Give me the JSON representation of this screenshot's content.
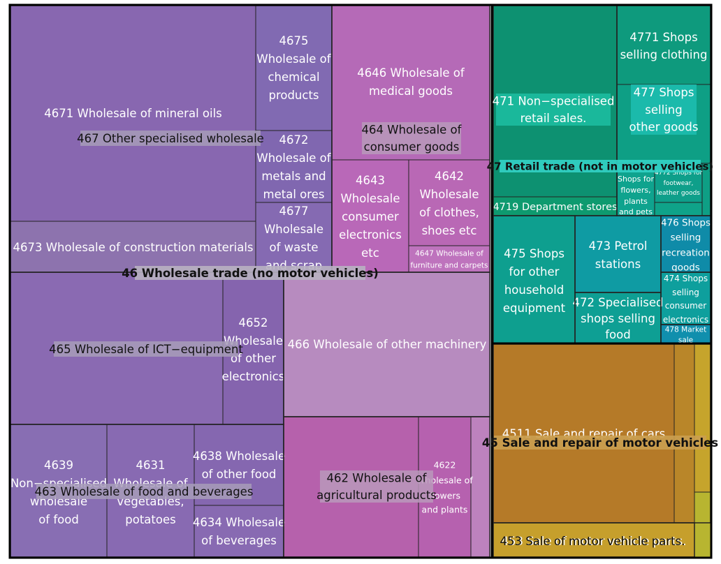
{
  "chart_data": {
    "type": "treemap",
    "colors": {
      "46": "#8a67b0",
      "47": "#0e9a78",
      "45": "#b57a28"
    },
    "groups": [
      {
        "id": "46",
        "name": "46 Wholesale trade (no motor vehicles)",
        "subgroups": [
          {
            "id": "467",
            "name": "467 Other specialised wholesale",
            "leaves": [
              {
                "id": "4671",
                "name": "4671 Wholesale of mineral oils"
              },
              {
                "id": "4673",
                "name": "4673 Wholesale of construction materials"
              },
              {
                "id": "4675",
                "name": "4675 Wholesale of chemical products"
              },
              {
                "id": "4672",
                "name": "4672 Wholesale of metals and metal ores"
              },
              {
                "id": "4677",
                "name": "4677 Wholesale of waste and scrap"
              }
            ]
          },
          {
            "id": "464",
            "name": "464 Wholesale of consumer goods",
            "leaves": [
              {
                "id": "4646",
                "name": "4646 Wholesale of medical goods"
              },
              {
                "id": "4643",
                "name": "4643 Wholesale consumer electronics etc"
              },
              {
                "id": "4642",
                "name": "4642 Wholesale of clothes, shoes etc"
              },
              {
                "id": "4647",
                "name": "4647 Wholesale of furniture and carpets"
              }
            ]
          },
          {
            "id": "465",
            "name": "465 Wholesale of ICT−equipment",
            "leaves": [
              {
                "id": "4651",
                "name": ""
              },
              {
                "id": "4652",
                "name": "4652 Wholesale of other electronics"
              }
            ]
          },
          {
            "id": "466",
            "name": "466 Wholesale of other machinery",
            "leaves": [
              {
                "id": "4669",
                "name": ""
              },
              {
                "id": "4660a",
                "name": ""
              }
            ]
          },
          {
            "id": "463",
            "name": "463 Wholesale of food and beverages",
            "leaves": [
              {
                "id": "4639",
                "name": "4639 Non−specialised wholesale of food"
              },
              {
                "id": "4631",
                "name": "4631 Wholesale of vegetables, potatoes"
              },
              {
                "id": "4638",
                "name": "4638 Wholesale of other food"
              },
              {
                "id": "4634",
                "name": "4634 Wholesale of beverages"
              }
            ]
          },
          {
            "id": "462",
            "name": "462 Wholesale of agricultural products",
            "leaves": [
              {
                "id": "4621",
                "name": ""
              },
              {
                "id": "4622",
                "name": "4622 Wholesale of flowers and plants"
              },
              {
                "id": "4623",
                "name": ""
              }
            ]
          }
        ]
      },
      {
        "id": "47",
        "name": "47 Retail trade (not in motor vehicles)",
        "subgroups": [
          {
            "id": "471",
            "name": "471 Non−specialised retail sales.",
            "leaves": [
              {
                "id": "4711",
                "name": ""
              },
              {
                "id": "4719",
                "name": "4719 Department stores"
              }
            ]
          },
          {
            "id": "477",
            "name": "477 Shops selling other goods",
            "leaves": [
              {
                "id": "4771",
                "name": "4771 Shops selling clothing"
              },
              {
                "id": "4776",
                "name": "Shops for flowers, plants and pets"
              },
              {
                "id": "4772",
                "name": "4772 Shops for footwear, leather goods"
              }
            ]
          },
          {
            "id": "475",
            "name": "475 Shops for other household equipment",
            "leaves": []
          },
          {
            "id": "473",
            "name": "473 Petrol stations",
            "leaves": []
          },
          {
            "id": "472",
            "name": "472 Specialised shops selling food",
            "leaves": []
          },
          {
            "id": "476",
            "name": "476 Shops selling recreation goods",
            "leaves": []
          },
          {
            "id": "474",
            "name": "474 Shops selling consumer electronics",
            "leaves": []
          },
          {
            "id": "478",
            "name": "478 Market sale",
            "leaves": []
          }
        ]
      },
      {
        "id": "45",
        "name": "45 Sale and repair of motor vehicles",
        "subgroups": [
          {
            "id": "451",
            "name": "",
            "leaves": [
              {
                "id": "4511",
                "name": "4511 Sale and repair of cars"
              }
            ]
          },
          {
            "id": "453",
            "name": "453 Sale of motor vehicle parts.",
            "leaves": []
          }
        ]
      }
    ]
  }
}
